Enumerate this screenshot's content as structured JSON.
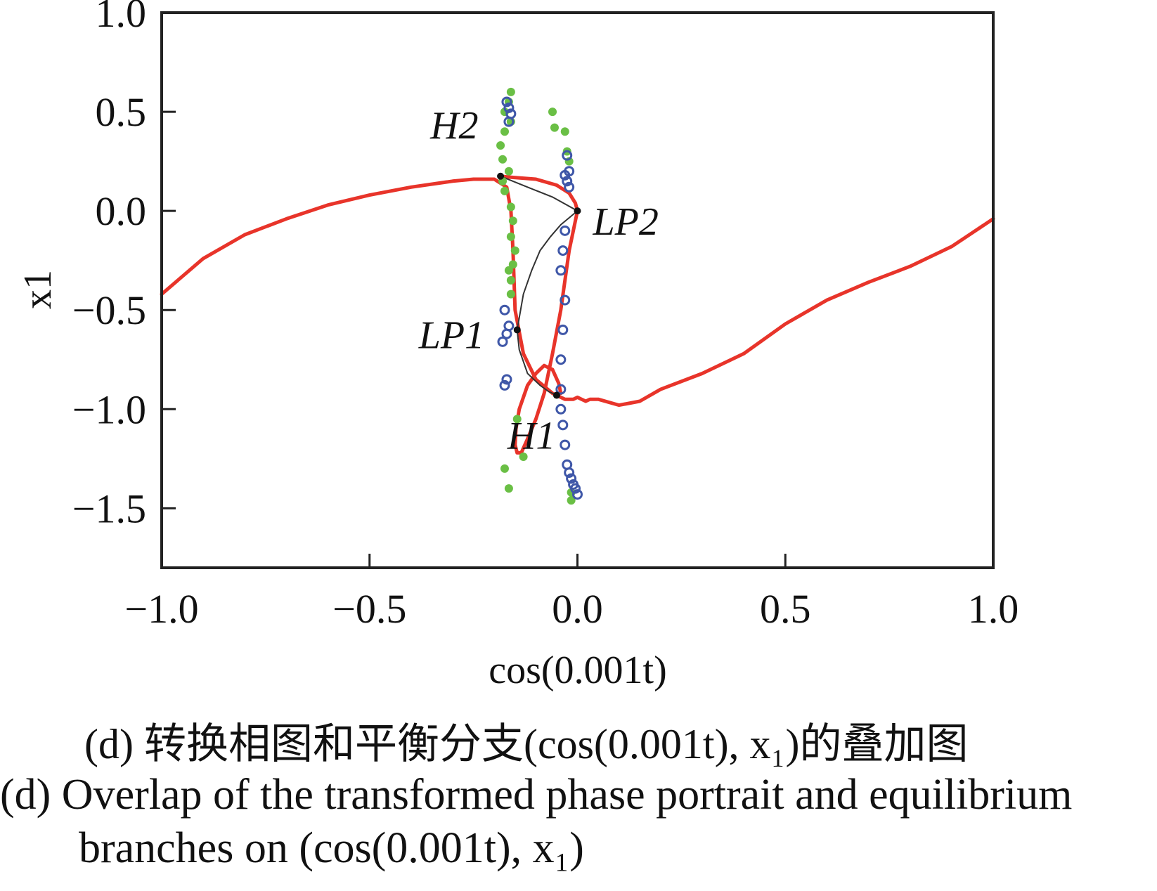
{
  "chart_data": {
    "type": "line",
    "xlabel": "cos(0.001t)",
    "ylabel": "x1",
    "xlim": [
      -1.0,
      1.0
    ],
    "ylim": [
      -1.8,
      1.0
    ],
    "xticks": [
      "−1.0",
      "−0.5",
      "0.0",
      "0.5",
      "1.0"
    ],
    "xtick_values": [
      -1.0,
      -0.5,
      0.0,
      0.5,
      1.0
    ],
    "yticks": [
      "1.0",
      "0.5",
      "0.0",
      "−0.5",
      "−1.0",
      "−1.5"
    ],
    "ytick_values": [
      1.0,
      0.5,
      0.0,
      -0.5,
      -1.0,
      -1.5
    ],
    "grid": false,
    "colors": {
      "phase_portrait": "#e8342a",
      "stable": "#6abf45",
      "unstable": "#3f57a8",
      "equilibrium_curve": "#333333"
    },
    "series": [
      {
        "x": [
          -1.0,
          -0.9,
          -0.8,
          -0.7,
          -0.6,
          -0.5,
          -0.4,
          -0.3,
          -0.25,
          -0.2,
          -0.17,
          -0.16,
          -0.155,
          -0.15,
          -0.13,
          -0.1,
          -0.06,
          -0.03,
          -0.01,
          0.0,
          0.01,
          0.02,
          0.03,
          0.05,
          0.1,
          0.15,
          0.2,
          0.3,
          0.4,
          0.5,
          0.6,
          0.7,
          0.8,
          0.9,
          0.95,
          1.0
        ],
        "y": [
          -0.42,
          -0.24,
          -0.12,
          -0.04,
          0.03,
          0.08,
          0.12,
          0.15,
          0.16,
          0.16,
          0.12,
          0.0,
          -0.2,
          -0.5,
          -0.72,
          -0.85,
          -0.92,
          -0.95,
          -0.95,
          -0.94,
          -0.95,
          -0.96,
          -0.95,
          -0.95,
          -0.98,
          -0.96,
          -0.9,
          -0.82,
          -0.72,
          -0.57,
          -0.45,
          -0.36,
          -0.28,
          -0.18,
          -0.11,
          -0.04
        ]
      },
      {
        "x": [
          -0.185,
          -0.16,
          -0.1,
          -0.05,
          -0.02,
          -0.005,
          0.0,
          -0.01,
          -0.02,
          -0.04,
          -0.06,
          -0.08,
          -0.1,
          -0.12,
          -0.135,
          -0.145,
          -0.15,
          -0.148,
          -0.14,
          -0.12,
          -0.1,
          -0.08,
          -0.06,
          -0.045,
          -0.04
        ],
        "y": [
          0.175,
          0.17,
          0.16,
          0.13,
          0.09,
          0.04,
          0.0,
          -0.1,
          -0.2,
          -0.5,
          -0.72,
          -0.92,
          -1.05,
          -1.15,
          -1.22,
          -1.22,
          -1.18,
          -1.1,
          -1.0,
          -0.88,
          -0.82,
          -0.78,
          -0.8,
          -0.87,
          -0.92
        ]
      }
    ],
    "branches": [
      {
        "x": [
          -0.16,
          -0.165,
          -0.175,
          -0.16,
          -0.175,
          -0.185,
          -0.18,
          -0.165,
          -0.18,
          -0.175,
          -0.16,
          -0.155,
          -0.16,
          -0.15,
          -0.155,
          -0.165,
          -0.16,
          -0.16,
          -0.145,
          -0.13,
          -0.175,
          -0.165,
          -0.06,
          -0.055,
          -0.03,
          -0.025,
          -0.02,
          -0.015,
          -0.015
        ],
        "y": [
          0.6,
          0.55,
          0.5,
          0.45,
          0.4,
          0.33,
          0.26,
          0.2,
          0.15,
          0.1,
          0.02,
          -0.05,
          -0.13,
          -0.2,
          -0.27,
          -0.3,
          -0.35,
          -0.42,
          -1.05,
          -1.24,
          -1.3,
          -1.4,
          0.5,
          0.42,
          0.4,
          0.3,
          0.25,
          -1.42,
          -1.46
        ]
      },
      {
        "x": [
          -0.17,
          -0.165,
          -0.16,
          -0.165,
          -0.175,
          -0.165,
          -0.17,
          -0.18,
          -0.17,
          -0.175,
          -0.025,
          -0.02,
          -0.03,
          -0.025,
          -0.02,
          -0.03,
          -0.035,
          -0.04,
          -0.03,
          -0.035,
          -0.04,
          -0.04,
          -0.04,
          -0.035,
          -0.03,
          -0.025,
          -0.02,
          -0.015,
          -0.01,
          -0.005,
          0.0
        ],
        "y": [
          0.55,
          0.52,
          0.49,
          0.45,
          -0.5,
          -0.58,
          -0.62,
          -0.66,
          -0.85,
          -0.88,
          0.28,
          0.2,
          0.18,
          0.15,
          0.12,
          -0.1,
          -0.2,
          -0.3,
          -0.45,
          -0.6,
          -0.75,
          -0.9,
          -1.0,
          -1.08,
          -1.18,
          -1.28,
          -1.32,
          -1.35,
          -1.38,
          -1.4,
          -1.43
        ]
      }
    ],
    "equilibrium_curve": {
      "x": [
        -0.185,
        -0.12,
        -0.06,
        0.0,
        -0.04,
        -0.065,
        -0.09,
        -0.11,
        -0.13,
        -0.145,
        -0.14,
        -0.12,
        -0.09,
        -0.07,
        -0.05
      ],
      "y": [
        0.175,
        0.12,
        0.07,
        0.0,
        -0.07,
        -0.13,
        -0.2,
        -0.3,
        -0.42,
        -0.6,
        -0.7,
        -0.82,
        -0.88,
        -0.91,
        -0.93
      ]
    },
    "annotations": [
      {
        "text": "H2",
        "x": -0.185,
        "y": 0.175
      },
      {
        "text": "LP2",
        "x": 0.0,
        "y": 0.0
      },
      {
        "text": "LP1",
        "x": -0.145,
        "y": -0.6
      },
      {
        "text": "H1",
        "x": -0.05,
        "y": -0.93
      }
    ]
  },
  "caption": {
    "chinese": "(d)  转换相图和平衡分支(cos(0.001t), x₁)的叠加图",
    "english_line1": "(d)  Overlap of the transformed phase portrait and equilibrium",
    "english_line2": "branches on (cos(0.001t), x₁)"
  }
}
